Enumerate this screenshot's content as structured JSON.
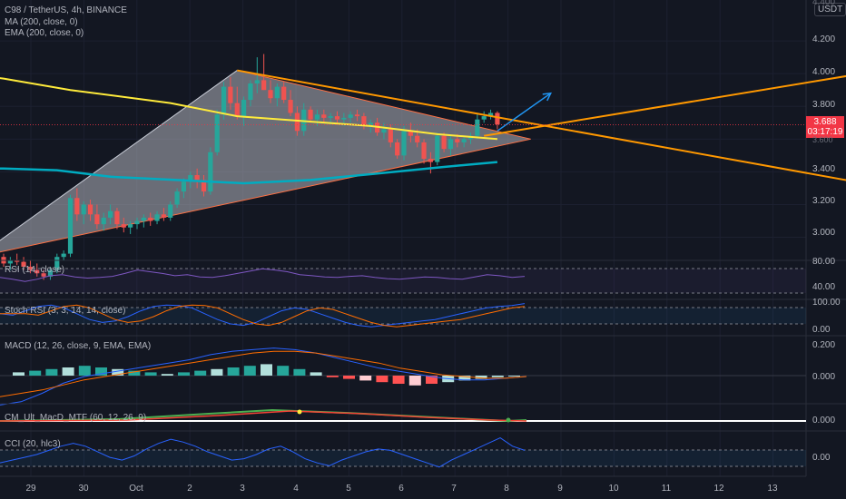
{
  "header": {
    "symbol_line": "C98 / TetherUS, 4h, BINANCE",
    "ma_line": "MA (200, close, 0)",
    "ema_line": "EMA (200, close, 0)"
  },
  "currency_button": "USDT",
  "price_axis": {
    "top_clipped": "4.400",
    "ticks": [
      "4.200",
      "4.000",
      "3.800",
      "3.400",
      "3.200",
      "3.000"
    ],
    "last_price": "3.688",
    "countdown": "03:17:19",
    "hidden_partial": "3.600"
  },
  "panes": {
    "rsi": {
      "label": "RSI (14, close)",
      "axis": [
        "80.00",
        "40.00"
      ]
    },
    "stoch_rsi": {
      "label": "Stoch RSI (3, 3, 14, 14, close)",
      "axis": [
        "100.00",
        "0.00"
      ]
    },
    "macd": {
      "label": "MACD (12, 26, close, 9, EMA, EMA)",
      "axis": [
        "0.200",
        "0.000"
      ]
    },
    "cm_macd": {
      "label": "CM_Ult_MacD_MTF (60, 12, 26, 9)",
      "axis": [
        "0.000"
      ]
    },
    "cci": {
      "label": "CCI (20, hlc3)",
      "axis": [
        "0.00"
      ]
    }
  },
  "time_axis": [
    "29",
    "30",
    "Oct",
    "2",
    "3",
    "4",
    "5",
    "6",
    "7",
    "8",
    "9",
    "10",
    "11",
    "12",
    "13"
  ],
  "colors": {
    "background": "#131722",
    "up": "#26a69a",
    "down": "#ef5350",
    "ma": "#ffeb3b",
    "ema": "#00acc1",
    "trendline": "#ff9800",
    "pattern": "#b2b5be",
    "arrow": "#2196f3",
    "rsi": "#7e57c2",
    "macd_line": "#2962ff",
    "signal_line": "#ff6d00"
  },
  "chart_data": {
    "type": "candlestick",
    "symbol": "C98 / TetherUS",
    "interval": "4h",
    "exchange": "BINANCE",
    "candles": [
      {
        "o": 2.88,
        "h": 2.9,
        "l": 2.82,
        "c": 2.84
      },
      {
        "o": 2.84,
        "h": 2.88,
        "l": 2.8,
        "c": 2.86
      },
      {
        "o": 2.86,
        "h": 2.9,
        "l": 2.83,
        "c": 2.85
      },
      {
        "o": 2.85,
        "h": 2.88,
        "l": 2.8,
        "c": 2.82
      },
      {
        "o": 2.82,
        "h": 2.86,
        "l": 2.78,
        "c": 2.8
      },
      {
        "o": 2.8,
        "h": 2.84,
        "l": 2.76,
        "c": 2.78
      },
      {
        "o": 2.78,
        "h": 2.8,
        "l": 2.74,
        "c": 2.76
      },
      {
        "o": 2.76,
        "h": 2.82,
        "l": 2.74,
        "c": 2.8
      },
      {
        "o": 2.8,
        "h": 2.9,
        "l": 2.78,
        "c": 2.88
      },
      {
        "o": 2.88,
        "h": 2.92,
        "l": 2.86,
        "c": 2.9
      },
      {
        "o": 2.9,
        "h": 3.26,
        "l": 2.88,
        "c": 3.24
      },
      {
        "o": 3.24,
        "h": 3.3,
        "l": 3.1,
        "c": 3.14
      },
      {
        "o": 3.14,
        "h": 3.22,
        "l": 3.08,
        "c": 3.2
      },
      {
        "o": 3.2,
        "h": 3.23,
        "l": 3.1,
        "c": 3.14
      },
      {
        "o": 3.14,
        "h": 3.2,
        "l": 3.05,
        "c": 3.08
      },
      {
        "o": 3.08,
        "h": 3.15,
        "l": 3.04,
        "c": 3.12
      },
      {
        "o": 3.12,
        "h": 3.2,
        "l": 3.08,
        "c": 3.16
      },
      {
        "o": 3.16,
        "h": 3.18,
        "l": 3.05,
        "c": 3.08
      },
      {
        "o": 3.08,
        "h": 3.12,
        "l": 3.03,
        "c": 3.06
      },
      {
        "o": 3.06,
        "h": 3.1,
        "l": 3.02,
        "c": 3.08
      },
      {
        "o": 3.08,
        "h": 3.12,
        "l": 3.05,
        "c": 3.1
      },
      {
        "o": 3.1,
        "h": 3.14,
        "l": 3.06,
        "c": 3.12
      },
      {
        "o": 3.12,
        "h": 3.15,
        "l": 3.07,
        "c": 3.1
      },
      {
        "o": 3.1,
        "h": 3.16,
        "l": 3.08,
        "c": 3.14
      },
      {
        "o": 3.14,
        "h": 3.18,
        "l": 3.1,
        "c": 3.12
      },
      {
        "o": 3.12,
        "h": 3.22,
        "l": 3.1,
        "c": 3.2
      },
      {
        "o": 3.2,
        "h": 3.3,
        "l": 3.18,
        "c": 3.28
      },
      {
        "o": 3.28,
        "h": 3.36,
        "l": 3.24,
        "c": 3.34
      },
      {
        "o": 3.34,
        "h": 3.4,
        "l": 3.3,
        "c": 3.38
      },
      {
        "o": 3.38,
        "h": 3.42,
        "l": 3.3,
        "c": 3.35
      },
      {
        "o": 3.35,
        "h": 3.38,
        "l": 3.25,
        "c": 3.28
      },
      {
        "o": 3.28,
        "h": 3.55,
        "l": 3.26,
        "c": 3.52
      },
      {
        "o": 3.52,
        "h": 3.78,
        "l": 3.5,
        "c": 3.75
      },
      {
        "o": 3.75,
        "h": 3.95,
        "l": 3.72,
        "c": 3.92
      },
      {
        "o": 3.92,
        "h": 3.98,
        "l": 3.78,
        "c": 3.82
      },
      {
        "o": 3.82,
        "h": 3.92,
        "l": 3.72,
        "c": 3.74
      },
      {
        "o": 3.74,
        "h": 3.86,
        "l": 3.68,
        "c": 3.84
      },
      {
        "o": 3.84,
        "h": 3.96,
        "l": 3.8,
        "c": 3.94
      },
      {
        "o": 3.94,
        "h": 4.1,
        "l": 3.88,
        "c": 3.96
      },
      {
        "o": 3.96,
        "h": 4.12,
        "l": 3.9,
        "c": 3.9
      },
      {
        "o": 3.9,
        "h": 3.96,
        "l": 3.82,
        "c": 3.85
      },
      {
        "o": 3.85,
        "h": 3.94,
        "l": 3.8,
        "c": 3.92
      },
      {
        "o": 3.92,
        "h": 3.95,
        "l": 3.82,
        "c": 3.84
      },
      {
        "o": 3.84,
        "h": 3.9,
        "l": 3.74,
        "c": 3.76
      },
      {
        "o": 3.76,
        "h": 3.8,
        "l": 3.62,
        "c": 3.65
      },
      {
        "o": 3.65,
        "h": 3.82,
        "l": 3.62,
        "c": 3.78
      },
      {
        "o": 3.78,
        "h": 3.8,
        "l": 3.7,
        "c": 3.72
      },
      {
        "o": 3.72,
        "h": 3.78,
        "l": 3.68,
        "c": 3.75
      },
      {
        "o": 3.75,
        "h": 3.78,
        "l": 3.7,
        "c": 3.73
      },
      {
        "o": 3.73,
        "h": 3.76,
        "l": 3.69,
        "c": 3.74
      },
      {
        "o": 3.74,
        "h": 3.77,
        "l": 3.7,
        "c": 3.72
      },
      {
        "o": 3.72,
        "h": 3.76,
        "l": 3.68,
        "c": 3.73
      },
      {
        "o": 3.73,
        "h": 3.77,
        "l": 3.7,
        "c": 3.75
      },
      {
        "o": 3.75,
        "h": 3.78,
        "l": 3.71,
        "c": 3.74
      },
      {
        "o": 3.74,
        "h": 3.76,
        "l": 3.66,
        "c": 3.68
      },
      {
        "o": 3.68,
        "h": 3.72,
        "l": 3.64,
        "c": 3.7
      },
      {
        "o": 3.7,
        "h": 3.73,
        "l": 3.62,
        "c": 3.64
      },
      {
        "o": 3.64,
        "h": 3.7,
        "l": 3.6,
        "c": 3.66
      },
      {
        "o": 3.66,
        "h": 3.69,
        "l": 3.55,
        "c": 3.58
      },
      {
        "o": 3.58,
        "h": 3.6,
        "l": 3.48,
        "c": 3.5
      },
      {
        "o": 3.5,
        "h": 3.68,
        "l": 3.47,
        "c": 3.65
      },
      {
        "o": 3.65,
        "h": 3.7,
        "l": 3.58,
        "c": 3.62
      },
      {
        "o": 3.62,
        "h": 3.66,
        "l": 3.55,
        "c": 3.58
      },
      {
        "o": 3.58,
        "h": 3.6,
        "l": 3.45,
        "c": 3.48
      },
      {
        "o": 3.48,
        "h": 3.52,
        "l": 3.39,
        "c": 3.46
      },
      {
        "o": 3.46,
        "h": 3.64,
        "l": 3.44,
        "c": 3.62
      },
      {
        "o": 3.62,
        "h": 3.64,
        "l": 3.52,
        "c": 3.54
      },
      {
        "o": 3.54,
        "h": 3.62,
        "l": 3.5,
        "c": 3.6
      },
      {
        "o": 3.6,
        "h": 3.63,
        "l": 3.55,
        "c": 3.58
      },
      {
        "o": 3.58,
        "h": 3.62,
        "l": 3.55,
        "c": 3.6
      },
      {
        "o": 3.6,
        "h": 3.64,
        "l": 3.57,
        "c": 3.62
      },
      {
        "o": 3.62,
        "h": 3.76,
        "l": 3.6,
        "c": 3.72
      },
      {
        "o": 3.72,
        "h": 3.77,
        "l": 3.7,
        "c": 3.74
      },
      {
        "o": 3.74,
        "h": 3.78,
        "l": 3.72,
        "c": 3.76
      },
      {
        "o": 3.76,
        "h": 3.77,
        "l": 3.66,
        "c": 3.69
      }
    ],
    "ma200": [
      [
        0,
        3.97
      ],
      [
        10,
        3.9
      ],
      [
        25,
        3.82
      ],
      [
        35,
        3.74
      ],
      [
        45,
        3.71
      ],
      [
        55,
        3.68
      ],
      [
        65,
        3.63
      ],
      [
        74,
        3.6
      ]
    ],
    "ema200": [
      [
        0,
        3.42
      ],
      [
        8,
        3.41
      ],
      [
        16,
        3.37
      ],
      [
        26,
        3.35
      ],
      [
        36,
        3.33
      ],
      [
        46,
        3.35
      ],
      [
        56,
        3.39
      ],
      [
        66,
        3.43
      ],
      [
        74,
        3.46
      ]
    ],
    "price_axis_range": [
      2.87,
      4.45
    ],
    "ylim": [
      2.87,
      4.45
    ],
    "x_labels": [
      "29",
      "30",
      "Oct",
      "2",
      "3",
      "4",
      "5",
      "6",
      "7",
      "8",
      "9",
      "10",
      "11",
      "12",
      "13"
    ],
    "drawings": [
      {
        "type": "triangle_pattern",
        "points": [
          [
            -4,
            2.88
          ],
          [
            35,
            4.02
          ],
          [
            79,
            3.6
          ]
        ]
      },
      {
        "type": "trendline",
        "points": [
          [
            35,
            4.02
          ],
          [
            133,
            3.3
          ]
        ]
      },
      {
        "type": "trendline",
        "points": [
          [
            72,
            3.62
          ],
          [
            133,
            4.03
          ]
        ]
      },
      {
        "type": "arrow",
        "points": [
          [
            74,
            3.65
          ],
          [
            82,
            3.88
          ]
        ]
      }
    ],
    "indicators": {
      "rsi": [
        55,
        52,
        48,
        52,
        58,
        60,
        56,
        54,
        55,
        57,
        62,
        68,
        65,
        62,
        58,
        60,
        56,
        55,
        58,
        62,
        66,
        70,
        68,
        65,
        60,
        58,
        56,
        55,
        57,
        58,
        55,
        53,
        52,
        54,
        56,
        55,
        53,
        52,
        56,
        60,
        58,
        55,
        57
      ],
      "stoch_rsi": [
        60,
        55,
        70,
        85,
        90,
        80,
        60,
        40,
        30,
        35,
        50,
        70,
        85,
        90,
        88,
        80,
        60,
        40,
        25,
        20,
        30,
        50,
        70,
        80,
        75,
        60,
        45,
        30,
        20,
        15,
        20,
        25,
        30,
        35,
        40,
        50,
        60,
        70,
        80,
        85,
        88,
        95
      ],
      "macd_line": [
        -0.17,
        -0.15,
        -0.1,
        -0.04,
        0.0,
        0.02,
        0.04,
        0.06,
        0.08,
        0.1,
        0.13,
        0.15,
        0.16,
        0.17,
        0.16,
        0.14,
        0.11,
        0.08,
        0.05,
        0.03,
        0.01,
        -0.01,
        -0.02,
        -0.02,
        -0.01,
        0.0
      ],
      "macd_signal": [
        -0.12,
        -0.1,
        -0.08,
        -0.05,
        -0.02,
        0.0,
        0.02,
        0.04,
        0.06,
        0.08,
        0.1,
        0.12,
        0.14,
        0.15,
        0.15,
        0.14,
        0.12,
        0.1,
        0.08,
        0.05,
        0.03,
        0.01,
        -0.0,
        -0.01,
        -0.01,
        0.0
      ],
      "macd_hist": [
        0.02,
        0.03,
        0.04,
        0.05,
        0.06,
        0.05,
        0.04,
        0.03,
        0.02,
        0.01,
        0.02,
        0.03,
        0.04,
        0.05,
        0.06,
        0.07,
        0.06,
        0.04,
        0.02,
        -0.01,
        -0.02,
        -0.03,
        -0.04,
        -0.05,
        -0.06,
        -0.05,
        -0.04,
        -0.03,
        -0.02,
        -0.01,
        0.0
      ],
      "cci": [
        -60,
        -40,
        -20,
        0,
        30,
        60,
        80,
        60,
        20,
        -20,
        -40,
        -10,
        40,
        80,
        110,
        90,
        60,
        20,
        -10,
        -40,
        -30,
        0,
        40,
        60,
        20,
        -30,
        -60,
        -80,
        -40,
        -10,
        20,
        40,
        30,
        0,
        -30,
        -60,
        -90,
        -40,
        0,
        40,
        80,
        120,
        60,
        30
      ]
    }
  }
}
